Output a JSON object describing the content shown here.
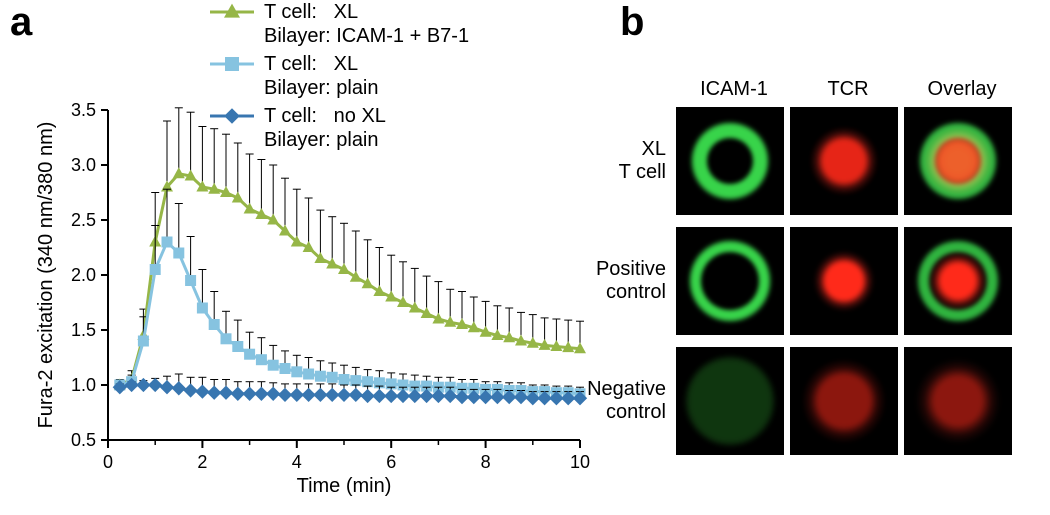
{
  "panelA": {
    "label": "a",
    "chart": {
      "type": "line",
      "xlabel": "Time (min)",
      "ylabel": "Fura-2 excitation (340 nm/380 nm)",
      "label_fontsize": 20,
      "tick_fontsize": 18,
      "xlim": [
        0,
        10
      ],
      "ylim": [
        0.5,
        3.5
      ],
      "xtick_step": 2,
      "xtick_minor": 1,
      "ytick_step": 0.5,
      "background_color": "#ffffff",
      "axis_color": "#000000",
      "series": [
        {
          "id": "xl_icam_b7",
          "legend": "T cell:   XL\nBilayer: ICAM-1 + B7-1",
          "color": "#96b647",
          "marker": "triangle",
          "marker_size": 10,
          "line_width": 3,
          "x": [
            0.25,
            0.5,
            0.75,
            1.0,
            1.25,
            1.5,
            1.75,
            2.0,
            2.25,
            2.5,
            2.75,
            3.0,
            3.25,
            3.5,
            3.75,
            4.0,
            4.25,
            4.5,
            4.75,
            5.0,
            5.25,
            5.5,
            5.75,
            6.0,
            6.25,
            6.5,
            6.75,
            7.0,
            7.25,
            7.5,
            7.75,
            8.0,
            8.25,
            8.5,
            8.75,
            9.0,
            9.25,
            9.5,
            9.75,
            10.0
          ],
          "y": [
            1.0,
            1.05,
            1.45,
            2.3,
            2.8,
            2.92,
            2.9,
            2.8,
            2.78,
            2.75,
            2.7,
            2.6,
            2.55,
            2.5,
            2.4,
            2.3,
            2.25,
            2.15,
            2.1,
            2.05,
            1.98,
            1.92,
            1.85,
            1.8,
            1.75,
            1.7,
            1.65,
            1.6,
            1.57,
            1.55,
            1.52,
            1.48,
            1.45,
            1.43,
            1.4,
            1.38,
            1.36,
            1.35,
            1.34,
            1.33
          ],
          "yerr": [
            0.05,
            0.08,
            0.24,
            0.45,
            0.6,
            0.6,
            0.58,
            0.55,
            0.55,
            0.53,
            0.5,
            0.5,
            0.5,
            0.5,
            0.48,
            0.48,
            0.45,
            0.44,
            0.43,
            0.42,
            0.42,
            0.4,
            0.4,
            0.38,
            0.37,
            0.36,
            0.34,
            0.34,
            0.3,
            0.3,
            0.28,
            0.28,
            0.27,
            0.27,
            0.26,
            0.26,
            0.25,
            0.25,
            0.25,
            0.25
          ]
        },
        {
          "id": "xl_plain",
          "legend": "T cell:   XL\nBilayer: plain",
          "color": "#86c3e0",
          "marker": "square",
          "marker_size": 11,
          "line_width": 3,
          "x": [
            0.25,
            0.5,
            0.75,
            1.0,
            1.25,
            1.5,
            1.75,
            2.0,
            2.25,
            2.5,
            2.75,
            3.0,
            3.25,
            3.5,
            3.75,
            4.0,
            4.25,
            4.5,
            4.75,
            5.0,
            5.25,
            5.5,
            5.75,
            6.0,
            6.25,
            6.5,
            6.75,
            7.0,
            7.25,
            7.5,
            7.75,
            8.0,
            8.25,
            8.5,
            8.75,
            9.0,
            9.25,
            9.5,
            9.75,
            10.0
          ],
          "y": [
            1.0,
            1.03,
            1.4,
            2.05,
            2.3,
            2.2,
            1.95,
            1.7,
            1.55,
            1.42,
            1.35,
            1.28,
            1.23,
            1.18,
            1.15,
            1.12,
            1.1,
            1.08,
            1.07,
            1.05,
            1.04,
            1.03,
            1.02,
            1.01,
            1.0,
            0.99,
            0.99,
            0.98,
            0.98,
            0.97,
            0.97,
            0.96,
            0.96,
            0.95,
            0.95,
            0.94,
            0.94,
            0.93,
            0.93,
            0.92
          ],
          "yerr": [
            0.04,
            0.06,
            0.22,
            0.4,
            0.48,
            0.45,
            0.4,
            0.35,
            0.3,
            0.25,
            0.24,
            0.2,
            0.2,
            0.18,
            0.16,
            0.15,
            0.15,
            0.14,
            0.13,
            0.13,
            0.12,
            0.11,
            0.11,
            0.1,
            0.1,
            0.1,
            0.09,
            0.09,
            0.09,
            0.08,
            0.08,
            0.07,
            0.07,
            0.07,
            0.07,
            0.06,
            0.06,
            0.06,
            0.06,
            0.06
          ]
        },
        {
          "id": "noxl_plain",
          "legend": "T cell:   no XL\nBilayer: plain",
          "color": "#3876b0",
          "marker": "diamond",
          "marker_size": 10,
          "line_width": 3,
          "x": [
            0.25,
            0.5,
            0.75,
            1.0,
            1.25,
            1.5,
            1.75,
            2.0,
            2.25,
            2.5,
            2.75,
            3.0,
            3.25,
            3.5,
            3.75,
            4.0,
            4.25,
            4.5,
            4.75,
            5.0,
            5.25,
            5.5,
            5.75,
            6.0,
            6.25,
            6.5,
            6.75,
            7.0,
            7.25,
            7.5,
            7.75,
            8.0,
            8.25,
            8.5,
            8.75,
            9.0,
            9.25,
            9.5,
            9.75,
            10.0
          ],
          "y": [
            0.98,
            1.0,
            1.0,
            1.0,
            0.98,
            0.97,
            0.95,
            0.94,
            0.93,
            0.93,
            0.92,
            0.92,
            0.92,
            0.92,
            0.91,
            0.91,
            0.91,
            0.91,
            0.91,
            0.91,
            0.91,
            0.9,
            0.9,
            0.9,
            0.9,
            0.9,
            0.9,
            0.9,
            0.9,
            0.89,
            0.89,
            0.89,
            0.89,
            0.89,
            0.89,
            0.88,
            0.88,
            0.88,
            0.88,
            0.88
          ],
          "yerr": [
            0.03,
            0.03,
            0.04,
            0.06,
            0.1,
            0.13,
            0.12,
            0.13,
            0.12,
            0.12,
            0.11,
            0.11,
            0.11,
            0.1,
            0.1,
            0.1,
            0.1,
            0.1,
            0.1,
            0.09,
            0.09,
            0.09,
            0.09,
            0.08,
            0.08,
            0.08,
            0.08,
            0.08,
            0.08,
            0.07,
            0.07,
            0.07,
            0.07,
            0.06,
            0.06,
            0.06,
            0.06,
            0.06,
            0.06,
            0.06
          ]
        }
      ]
    }
  },
  "panelB": {
    "label": "b",
    "columns": [
      "ICAM-1",
      "TCR",
      "Overlay"
    ],
    "rows": [
      {
        "label": "XL\nT cell",
        "id": "xl",
        "ring_radius_outer": 40,
        "ring_radius_inner": 22,
        "tcr_radius": 34,
        "tcr_alpha": 0.9
      },
      {
        "label": "Positive\ncontrol",
        "id": "pos",
        "ring_radius_outer": 42,
        "ring_radius_inner": 28,
        "tcr_radius": 30,
        "tcr_alpha": 1.0
      },
      {
        "label": "Negative\ncontrol",
        "id": "neg",
        "ring_radius_outer": 0,
        "ring_radius_inner": 0,
        "tcr_radius": 42,
        "tcr_alpha": 0.55
      }
    ],
    "colors": {
      "green_bright": "#38d44a",
      "green_dim": "#1a5a1a",
      "red_bright": "#ff2a1a",
      "red_dim": "#5a1a1a",
      "black": "#000000",
      "overlay_yellow": "#d8c23a"
    }
  }
}
